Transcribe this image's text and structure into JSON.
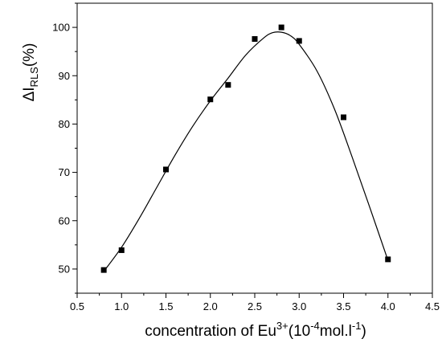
{
  "chart_data": {
    "type": "scatter",
    "title": "",
    "xlabel": {
      "prefix": "concentration of Eu",
      "sup1": "3+",
      "mid": "(10",
      "sup2": "-4",
      "mid2": "mol.l",
      "sup3": "-1",
      "suffix": ")"
    },
    "ylabel": {
      "prefix": "ΔI",
      "sub": "RLS",
      "suffix": "(%)"
    },
    "xlim": [
      0.5,
      4.5
    ],
    "ylim": [
      45,
      105
    ],
    "xticks": [
      0.5,
      1.0,
      1.5,
      2.0,
      2.5,
      3.0,
      3.5,
      4.0,
      4.5
    ],
    "xtick_labels": [
      "0.5",
      "1.0",
      "1.5",
      "2.0",
      "2.5",
      "3.0",
      "3.5",
      "4.0",
      "4.5"
    ],
    "yticks": [
      50,
      60,
      70,
      80,
      90,
      100
    ],
    "ytick_labels": [
      "50",
      "60",
      "70",
      "80",
      "90",
      "100"
    ],
    "grid": false,
    "legend": "none",
    "series": [
      {
        "marker": "square",
        "x": [
          0.8,
          1.0,
          1.5,
          2.0,
          2.2,
          2.5,
          2.8,
          3.0,
          3.5,
          4.0
        ],
        "y": [
          49.8,
          53.9,
          70.6,
          85.1,
          88.1,
          97.6,
          100.0,
          97.2,
          81.4,
          52.0
        ]
      }
    ],
    "fit_curve": {
      "x": [
        0.8,
        1.0,
        1.2,
        1.4,
        1.6,
        1.8,
        2.0,
        2.2,
        2.4,
        2.6,
        2.7,
        2.8,
        2.9,
        3.0,
        3.2,
        3.4,
        3.6,
        3.8,
        4.0
      ],
      "y": [
        49.5,
        54.5,
        60.5,
        67.0,
        73.5,
        79.5,
        84.8,
        89.5,
        94.3,
        97.8,
        98.9,
        99.0,
        98.3,
        96.5,
        91.0,
        83.0,
        73.0,
        62.5,
        51.8
      ]
    }
  }
}
